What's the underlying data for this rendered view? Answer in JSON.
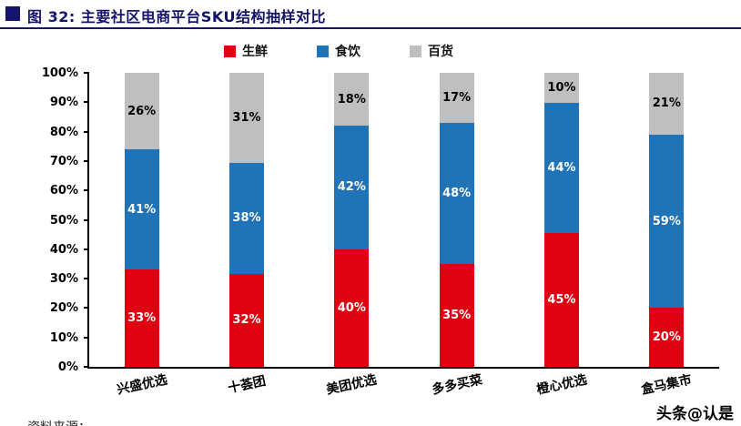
{
  "header": {
    "title": "图 32: 主要社区电商平台SKU结构抽样对比",
    "accent_color": "#14146a"
  },
  "watermark": "头条@认是",
  "footer": {
    "source_note_clipped": "资料来源：……"
  },
  "chart_data": {
    "type": "bar",
    "stacked": true,
    "title": "主要社区电商平台SKU结构抽样对比",
    "categories": [
      "兴盛优选",
      "十荟团",
      "美团优选",
      "多多买菜",
      "橙心优选",
      "盒马集市"
    ],
    "series": [
      {
        "name": "生鲜",
        "color": "#df0011",
        "label_color": "#ffffff",
        "values": [
          33,
          32,
          40,
          35,
          45,
          20
        ]
      },
      {
        "name": "食饮",
        "color": "#2173b8",
        "label_color": "#ffffff",
        "values": [
          41,
          38,
          42,
          48,
          44,
          59
        ]
      },
      {
        "name": "百货",
        "color": "#bfbfbf",
        "label_color": "#000000",
        "values": [
          26,
          31,
          18,
          17,
          10,
          21
        ]
      }
    ],
    "xlabel": "",
    "ylabel": "",
    "ylim": [
      0,
      100
    ],
    "yticks": [
      "0%",
      "10%",
      "20%",
      "30%",
      "40%",
      "50%",
      "60%",
      "70%",
      "80%",
      "90%",
      "100%"
    ],
    "legend_position": "top",
    "grid": false
  }
}
